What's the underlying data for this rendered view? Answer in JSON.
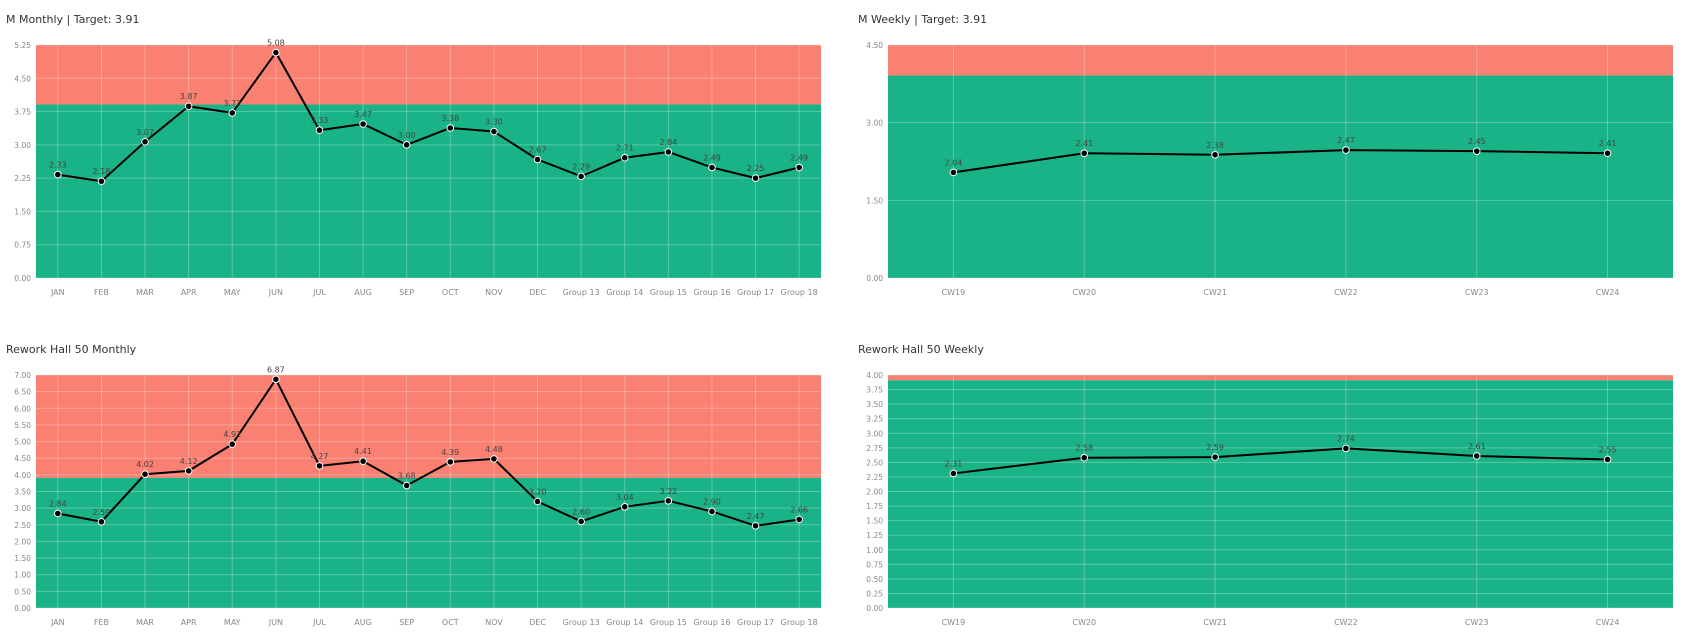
{
  "colors": {
    "above_target": "#fa8072",
    "below_target": "#1ab287",
    "line": "#000000",
    "axis_text": "#888888",
    "label_text": "#444444",
    "grid": "rgba(255,255,255,0.28)"
  },
  "chart_data": [
    {
      "type": "line",
      "title": "M Monthly | Target: 3.91",
      "target": 3.91,
      "categories": [
        "JAN",
        "FEB",
        "MAR",
        "APR",
        "MAY",
        "JUN",
        "JUL",
        "AUG",
        "SEP",
        "OCT",
        "NOV",
        "DEC",
        "Group 13",
        "Group 14",
        "Group 15",
        "Group 16",
        "Group 17",
        "Group 18"
      ],
      "values": [
        2.33,
        2.18,
        3.07,
        3.87,
        3.72,
        5.08,
        3.33,
        3.47,
        3.0,
        3.38,
        3.3,
        2.67,
        2.29,
        2.71,
        2.84,
        2.49,
        2.25,
        2.49
      ],
      "value_labels": [
        "2.33",
        "2.18",
        "3.07",
        "3.87",
        "3.72",
        "5.08",
        "3.33",
        "3.47",
        "3.00",
        "3.38",
        "3.30",
        "2.67",
        "2.29",
        "2.71",
        "2.84",
        "2.49",
        "2.25",
        "2.49"
      ],
      "ylim": [
        0,
        5.25
      ],
      "yticks": [
        0,
        0.75,
        1.5,
        2.25,
        3,
        3.75,
        4.5,
        5.25
      ],
      "ytick_labels": [
        "0.00",
        "0.75",
        "1.50",
        "2.25",
        "3.00",
        "3.75",
        "4.50",
        "5.25"
      ],
      "grid": true
    },
    {
      "type": "line",
      "title": "M Weekly | Target: 3.91",
      "target": 3.91,
      "categories": [
        "CW19",
        "CW20",
        "CW21",
        "CW22",
        "CW23",
        "CW24"
      ],
      "values": [
        2.04,
        2.41,
        2.38,
        2.47,
        2.45,
        2.41
      ],
      "value_labels": [
        "2.04",
        "2.41",
        "2.38",
        "2.47",
        "2.45",
        "2.41"
      ],
      "ylim": [
        0,
        4.5
      ],
      "yticks": [
        0,
        1.5,
        3,
        4.5
      ],
      "ytick_labels": [
        "0.00",
        "1.50",
        "3.00",
        "4.50"
      ],
      "grid": true
    },
    {
      "type": "line",
      "title": "Rework Hall 50 Monthly",
      "target": 3.91,
      "categories": [
        "JAN",
        "FEB",
        "MAR",
        "APR",
        "MAY",
        "JUN",
        "JUL",
        "AUG",
        "SEP",
        "OCT",
        "NOV",
        "DEC",
        "Group 13",
        "Group 14",
        "Group 15",
        "Group 16",
        "Group 17",
        "Group 18"
      ],
      "values": [
        2.84,
        2.59,
        4.02,
        4.12,
        4.92,
        6.87,
        4.27,
        4.41,
        3.68,
        4.39,
        4.48,
        3.2,
        2.6,
        3.04,
        3.22,
        2.9,
        2.47,
        2.66
      ],
      "value_labels": [
        "2.84",
        "2.59",
        "4.02",
        "4.12",
        "4.92",
        "6.87",
        "4.27",
        "4.41",
        "3.68",
        "4.39",
        "4.48",
        "3.20",
        "2.60",
        "3.04",
        "3.22",
        "2.90",
        "2.47",
        "2.66"
      ],
      "ylim": [
        0,
        7
      ],
      "yticks": [
        0,
        0.5,
        1,
        1.5,
        2,
        2.5,
        3,
        3.5,
        4,
        4.5,
        5,
        5.5,
        6,
        6.5,
        7
      ],
      "ytick_labels": [
        "0.00",
        "0.50",
        "1.00",
        "1.50",
        "2.00",
        "2.50",
        "3.00",
        "3.50",
        "4.00",
        "4.50",
        "5.00",
        "5.50",
        "6.00",
        "6.50",
        "7.00"
      ],
      "grid": true
    },
    {
      "type": "line",
      "title": "Rework Hall 50 Weekly",
      "target": 3.91,
      "categories": [
        "CW19",
        "CW20",
        "CW21",
        "CW22",
        "CW23",
        "CW24"
      ],
      "values": [
        2.31,
        2.58,
        2.59,
        2.74,
        2.61,
        2.55
      ],
      "value_labels": [
        "2.31",
        "2.58",
        "2.59",
        "2.74",
        "2.61",
        "2.55"
      ],
      "ylim": [
        0,
        4
      ],
      "yticks": [
        0,
        0.25,
        0.5,
        0.75,
        1,
        1.25,
        1.5,
        1.75,
        2,
        2.25,
        2.5,
        2.75,
        3,
        3.25,
        3.5,
        3.75,
        4
      ],
      "ytick_labels": [
        "0.00",
        "0.25",
        "0.50",
        "0.75",
        "1.00",
        "1.25",
        "1.50",
        "1.75",
        "2.00",
        "2.25",
        "2.50",
        "2.75",
        "3.00",
        "3.25",
        "3.50",
        "3.75",
        "4.00"
      ],
      "grid": true
    }
  ]
}
